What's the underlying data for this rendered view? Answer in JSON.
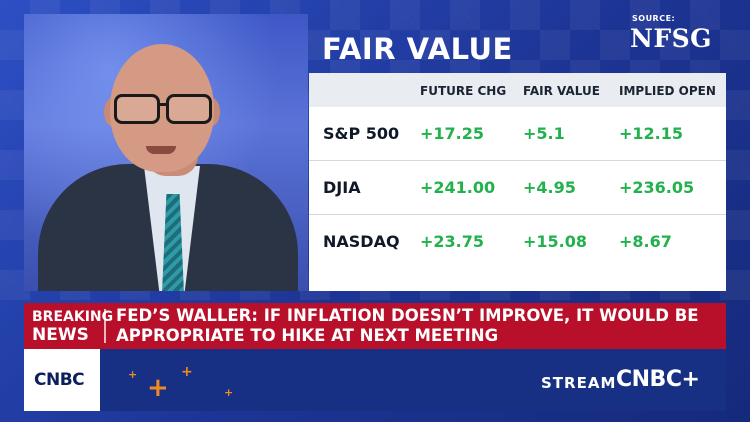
{
  "source": {
    "label": "SOURCE:",
    "logo": "NFSG"
  },
  "panel": {
    "title": "FAIR VALUE",
    "columns": [
      "FUTURE CHG",
      "FAIR VALUE",
      "IMPLIED OPEN"
    ],
    "rows": [
      {
        "name": "S&P 500",
        "future_chg": "+17.25",
        "fair_value": "+5.1",
        "implied_open": "+12.15"
      },
      {
        "name": "DJIA",
        "future_chg": "+241.00",
        "fair_value": "+4.95",
        "implied_open": "+236.05"
      },
      {
        "name": "NASDAQ",
        "future_chg": "+23.75",
        "fair_value": "+15.08",
        "implied_open": "+8.67"
      }
    ]
  },
  "breaking": {
    "label_line1": "BREAKING",
    "label_line2": "NEWS",
    "headline": "FED’S WALLER: IF INFLATION DOESN’T IMPROVE, IT WOULD BE APPROPRIATE TO HIKE AT NEXT MEETING"
  },
  "bottom": {
    "network_logo": "CNBC",
    "stream_label": "STREAM",
    "stream_logo": "CNBC+"
  },
  "colors": {
    "positive": "#22b14c",
    "breaking": "#b8102a",
    "accent": "#f08a24"
  }
}
